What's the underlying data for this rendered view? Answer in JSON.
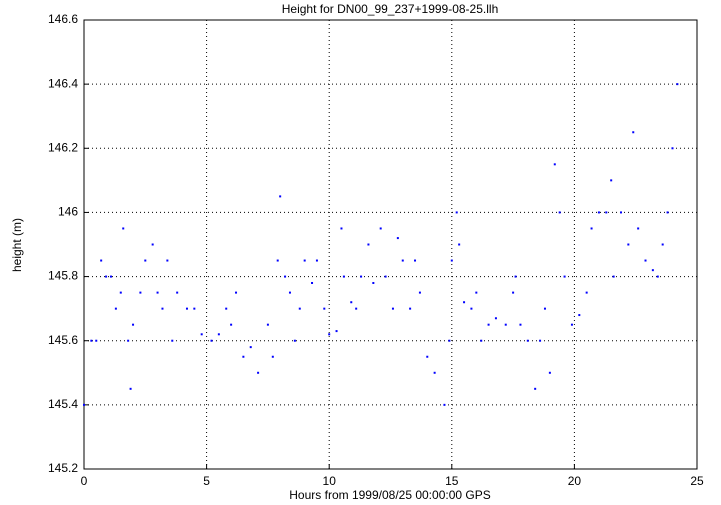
{
  "chart_data": {
    "type": "scatter",
    "title": "Height for DN00_99_237+1999-08-25.llh",
    "x_label": "Hours from 1999/08/25 00:00:00 GPS",
    "y_label": "height (m)",
    "series": [
      {
        "name": "height",
        "color": "#0000ff",
        "x": [
          0.0,
          0.3,
          0.5,
          0.7,
          0.9,
          1.1,
          1.3,
          1.5,
          1.6,
          1.8,
          1.9,
          2.0,
          2.3,
          2.5,
          2.8,
          3.0,
          3.2,
          3.4,
          3.6,
          3.8,
          4.2,
          4.5,
          4.8,
          5.2,
          5.5,
          5.8,
          6.0,
          6.2,
          6.5,
          6.8,
          7.1,
          7.5,
          7.7,
          7.9,
          8.0,
          8.2,
          8.4,
          8.6,
          8.8,
          9.0,
          9.3,
          9.5,
          9.8,
          10.0,
          10.3,
          10.5,
          10.6,
          10.9,
          11.1,
          11.3,
          11.6,
          11.8,
          12.1,
          12.3,
          12.6,
          12.8,
          13.0,
          13.3,
          13.5,
          13.7,
          14.0,
          14.3,
          14.7,
          14.9,
          15.0,
          15.2,
          15.3,
          15.5,
          15.8,
          16.0,
          16.2,
          16.5,
          16.8,
          17.2,
          17.5,
          17.6,
          17.8,
          18.1,
          18.4,
          18.6,
          18.8,
          19.0,
          19.2,
          19.4,
          19.6,
          19.9,
          20.2,
          20.5,
          20.7,
          21.0,
          21.3,
          21.5,
          21.6,
          21.9,
          22.2,
          22.4,
          22.6,
          22.9,
          23.2,
          23.4,
          23.6,
          23.8,
          24.0,
          24.2
        ],
        "values": [
          145.4,
          145.6,
          145.6,
          145.85,
          145.8,
          145.8,
          145.7,
          145.75,
          145.95,
          145.6,
          145.45,
          145.65,
          145.75,
          145.85,
          145.9,
          145.75,
          145.7,
          145.85,
          145.6,
          145.75,
          145.7,
          145.7,
          145.62,
          145.6,
          145.62,
          145.7,
          145.65,
          145.75,
          145.55,
          145.58,
          145.5,
          145.65,
          145.55,
          145.85,
          146.05,
          145.8,
          145.75,
          145.6,
          145.7,
          145.85,
          145.78,
          145.85,
          145.7,
          145.62,
          145.63,
          145.95,
          145.8,
          145.72,
          145.7,
          145.8,
          145.9,
          145.78,
          145.95,
          145.8,
          145.7,
          145.92,
          145.85,
          145.7,
          145.85,
          145.75,
          145.55,
          145.5,
          145.4,
          145.6,
          145.85,
          146.0,
          145.9,
          145.72,
          145.7,
          145.75,
          145.6,
          145.65,
          145.67,
          145.65,
          145.75,
          145.8,
          145.65,
          145.6,
          145.45,
          145.6,
          145.7,
          145.5,
          146.15,
          146.0,
          145.8,
          145.65,
          145.68,
          145.75,
          145.95,
          146.0,
          146.0,
          146.1,
          145.8,
          146.0,
          145.9,
          146.25,
          145.95,
          145.85,
          145.82,
          145.8,
          145.9,
          146.0,
          146.2,
          146.4
        ]
      }
    ],
    "xlim": [
      0,
      25
    ],
    "xticks": [
      0,
      5,
      10,
      15,
      20,
      25
    ],
    "ylim": [
      145.2,
      146.6
    ],
    "yticks": [
      145.2,
      145.4,
      145.6,
      145.8,
      146,
      146.2,
      146.4,
      146.6
    ],
    "grid": true
  }
}
